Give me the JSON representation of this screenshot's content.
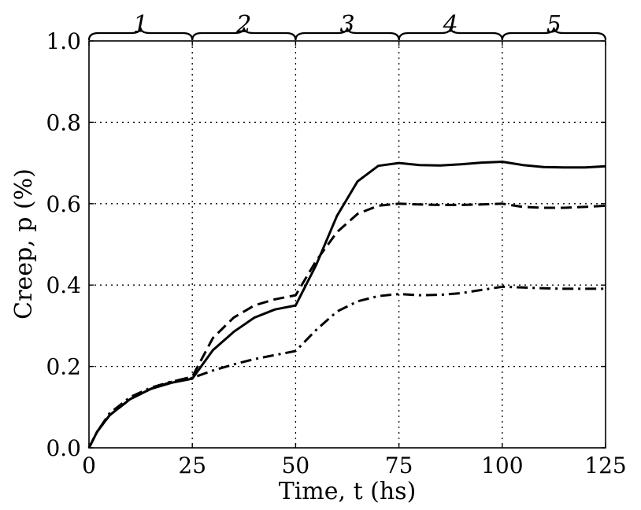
{
  "chart_data": {
    "type": "line",
    "xlabel": "Time, t (hs)",
    "ylabel": "Creep, p (%)",
    "xlim": [
      0,
      125
    ],
    "ylim": [
      0,
      1.0
    ],
    "grid": true,
    "x_ticks": [
      0,
      25,
      50,
      75,
      100,
      125
    ],
    "x_tick_labels": [
      "0",
      "25",
      "50",
      "75",
      "100",
      "125"
    ],
    "y_ticks": [
      0.0,
      0.2,
      0.4,
      0.6,
      0.8,
      1.0
    ],
    "y_tick_labels": [
      "0.0",
      "0.2",
      "0.4",
      "0.6",
      "0.8",
      "1.0"
    ],
    "intervals": [
      {
        "label": "1",
        "x_start": 0,
        "x_end": 25
      },
      {
        "label": "2",
        "x_start": 25,
        "x_end": 50
      },
      {
        "label": "3",
        "x_start": 50,
        "x_end": 75
      },
      {
        "label": "4",
        "x_start": 75,
        "x_end": 100
      },
      {
        "label": "5",
        "x_start": 100,
        "x_end": 125
      }
    ],
    "series": [
      {
        "style": "solid",
        "color": "#000000",
        "x": [
          0,
          2,
          5,
          10,
          15,
          20,
          25,
          30,
          35,
          40,
          45,
          50,
          55,
          60,
          65,
          70,
          75,
          80,
          85,
          90,
          95,
          100,
          105,
          110,
          115,
          120,
          125
        ],
        "y": [
          0.0,
          0.04,
          0.08,
          0.12,
          0.145,
          0.16,
          0.17,
          0.24,
          0.285,
          0.32,
          0.34,
          0.35,
          0.45,
          0.57,
          0.655,
          0.693,
          0.7,
          0.695,
          0.694,
          0.697,
          0.701,
          0.703,
          0.695,
          0.69,
          0.689,
          0.689,
          0.692
        ]
      },
      {
        "style": "dashed",
        "color": "#000000",
        "x": [
          0,
          2,
          5,
          10,
          15,
          20,
          25,
          30,
          35,
          40,
          45,
          50,
          55,
          60,
          65,
          70,
          75,
          80,
          85,
          90,
          95,
          100,
          105,
          110,
          115,
          120,
          125
        ],
        "y": [
          0.0,
          0.04,
          0.08,
          0.12,
          0.145,
          0.162,
          0.175,
          0.27,
          0.32,
          0.35,
          0.365,
          0.375,
          0.46,
          0.53,
          0.575,
          0.595,
          0.6,
          0.598,
          0.597,
          0.597,
          0.598,
          0.6,
          0.592,
          0.59,
          0.59,
          0.592,
          0.595
        ]
      },
      {
        "style": "dashdot",
        "color": "#000000",
        "x": [
          0,
          2,
          5,
          10,
          15,
          20,
          25,
          30,
          35,
          40,
          45,
          50,
          55,
          60,
          65,
          70,
          75,
          80,
          85,
          90,
          95,
          100,
          105,
          110,
          115,
          120,
          125
        ],
        "y": [
          0.0,
          0.04,
          0.085,
          0.125,
          0.148,
          0.163,
          0.172,
          0.19,
          0.205,
          0.218,
          0.228,
          0.238,
          0.29,
          0.335,
          0.36,
          0.373,
          0.378,
          0.375,
          0.376,
          0.38,
          0.388,
          0.396,
          0.394,
          0.392,
          0.391,
          0.391,
          0.391
        ]
      }
    ]
  }
}
